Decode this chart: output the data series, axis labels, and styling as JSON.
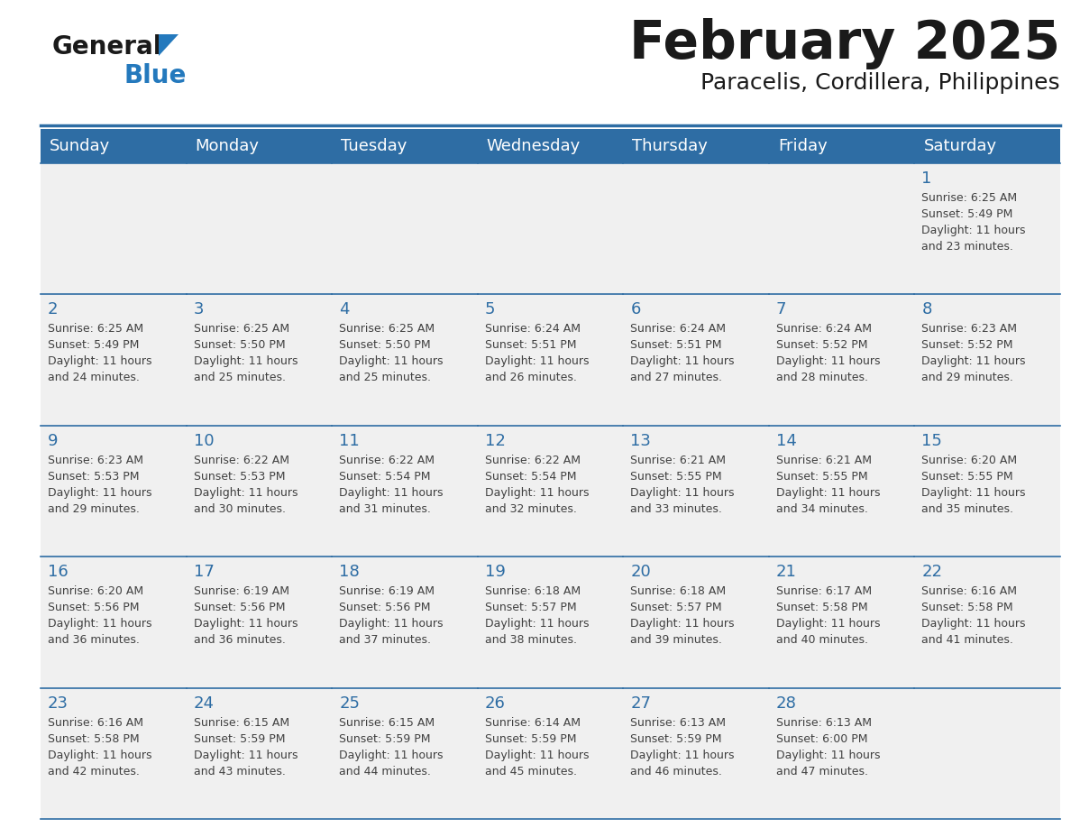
{
  "title": "February 2025",
  "subtitle": "Paracelis, Cordillera, Philippines",
  "days_of_week": [
    "Sunday",
    "Monday",
    "Tuesday",
    "Wednesday",
    "Thursday",
    "Friday",
    "Saturday"
  ],
  "header_bg": "#2E6DA4",
  "header_text": "#FFFFFF",
  "cell_bg": "#F0F0F0",
  "border_color": "#2E6DA4",
  "day_num_color": "#2E6DA4",
  "info_color": "#404040",
  "title_color": "#1a1a1a",
  "subtitle_color": "#1a1a1a",
  "logo_general_color": "#1a1a1a",
  "logo_blue_color": "#2479BD",
  "calendar": [
    [
      null,
      null,
      null,
      null,
      null,
      null,
      {
        "day": "1",
        "sunrise": "6:25 AM",
        "sunset": "5:49 PM",
        "dl1": "Daylight: 11 hours",
        "dl2": "and 23 minutes."
      }
    ],
    [
      {
        "day": "2",
        "sunrise": "6:25 AM",
        "sunset": "5:49 PM",
        "dl1": "Daylight: 11 hours",
        "dl2": "and 24 minutes."
      },
      {
        "day": "3",
        "sunrise": "6:25 AM",
        "sunset": "5:50 PM",
        "dl1": "Daylight: 11 hours",
        "dl2": "and 25 minutes."
      },
      {
        "day": "4",
        "sunrise": "6:25 AM",
        "sunset": "5:50 PM",
        "dl1": "Daylight: 11 hours",
        "dl2": "and 25 minutes."
      },
      {
        "day": "5",
        "sunrise": "6:24 AM",
        "sunset": "5:51 PM",
        "dl1": "Daylight: 11 hours",
        "dl2": "and 26 minutes."
      },
      {
        "day": "6",
        "sunrise": "6:24 AM",
        "sunset": "5:51 PM",
        "dl1": "Daylight: 11 hours",
        "dl2": "and 27 minutes."
      },
      {
        "day": "7",
        "sunrise": "6:24 AM",
        "sunset": "5:52 PM",
        "dl1": "Daylight: 11 hours",
        "dl2": "and 28 minutes."
      },
      {
        "day": "8",
        "sunrise": "6:23 AM",
        "sunset": "5:52 PM",
        "dl1": "Daylight: 11 hours",
        "dl2": "and 29 minutes."
      }
    ],
    [
      {
        "day": "9",
        "sunrise": "6:23 AM",
        "sunset": "5:53 PM",
        "dl1": "Daylight: 11 hours",
        "dl2": "and 29 minutes."
      },
      {
        "day": "10",
        "sunrise": "6:22 AM",
        "sunset": "5:53 PM",
        "dl1": "Daylight: 11 hours",
        "dl2": "and 30 minutes."
      },
      {
        "day": "11",
        "sunrise": "6:22 AM",
        "sunset": "5:54 PM",
        "dl1": "Daylight: 11 hours",
        "dl2": "and 31 minutes."
      },
      {
        "day": "12",
        "sunrise": "6:22 AM",
        "sunset": "5:54 PM",
        "dl1": "Daylight: 11 hours",
        "dl2": "and 32 minutes."
      },
      {
        "day": "13",
        "sunrise": "6:21 AM",
        "sunset": "5:55 PM",
        "dl1": "Daylight: 11 hours",
        "dl2": "and 33 minutes."
      },
      {
        "day": "14",
        "sunrise": "6:21 AM",
        "sunset": "5:55 PM",
        "dl1": "Daylight: 11 hours",
        "dl2": "and 34 minutes."
      },
      {
        "day": "15",
        "sunrise": "6:20 AM",
        "sunset": "5:55 PM",
        "dl1": "Daylight: 11 hours",
        "dl2": "and 35 minutes."
      }
    ],
    [
      {
        "day": "16",
        "sunrise": "6:20 AM",
        "sunset": "5:56 PM",
        "dl1": "Daylight: 11 hours",
        "dl2": "and 36 minutes."
      },
      {
        "day": "17",
        "sunrise": "6:19 AM",
        "sunset": "5:56 PM",
        "dl1": "Daylight: 11 hours",
        "dl2": "and 36 minutes."
      },
      {
        "day": "18",
        "sunrise": "6:19 AM",
        "sunset": "5:56 PM",
        "dl1": "Daylight: 11 hours",
        "dl2": "and 37 minutes."
      },
      {
        "day": "19",
        "sunrise": "6:18 AM",
        "sunset": "5:57 PM",
        "dl1": "Daylight: 11 hours",
        "dl2": "and 38 minutes."
      },
      {
        "day": "20",
        "sunrise": "6:18 AM",
        "sunset": "5:57 PM",
        "dl1": "Daylight: 11 hours",
        "dl2": "and 39 minutes."
      },
      {
        "day": "21",
        "sunrise": "6:17 AM",
        "sunset": "5:58 PM",
        "dl1": "Daylight: 11 hours",
        "dl2": "and 40 minutes."
      },
      {
        "day": "22",
        "sunrise": "6:16 AM",
        "sunset": "5:58 PM",
        "dl1": "Daylight: 11 hours",
        "dl2": "and 41 minutes."
      }
    ],
    [
      {
        "day": "23",
        "sunrise": "6:16 AM",
        "sunset": "5:58 PM",
        "dl1": "Daylight: 11 hours",
        "dl2": "and 42 minutes."
      },
      {
        "day": "24",
        "sunrise": "6:15 AM",
        "sunset": "5:59 PM",
        "dl1": "Daylight: 11 hours",
        "dl2": "and 43 minutes."
      },
      {
        "day": "25",
        "sunrise": "6:15 AM",
        "sunset": "5:59 PM",
        "dl1": "Daylight: 11 hours",
        "dl2": "and 44 minutes."
      },
      {
        "day": "26",
        "sunrise": "6:14 AM",
        "sunset": "5:59 PM",
        "dl1": "Daylight: 11 hours",
        "dl2": "and 45 minutes."
      },
      {
        "day": "27",
        "sunrise": "6:13 AM",
        "sunset": "5:59 PM",
        "dl1": "Daylight: 11 hours",
        "dl2": "and 46 minutes."
      },
      {
        "day": "28",
        "sunrise": "6:13 AM",
        "sunset": "6:00 PM",
        "dl1": "Daylight: 11 hours",
        "dl2": "and 47 minutes."
      },
      null
    ]
  ]
}
